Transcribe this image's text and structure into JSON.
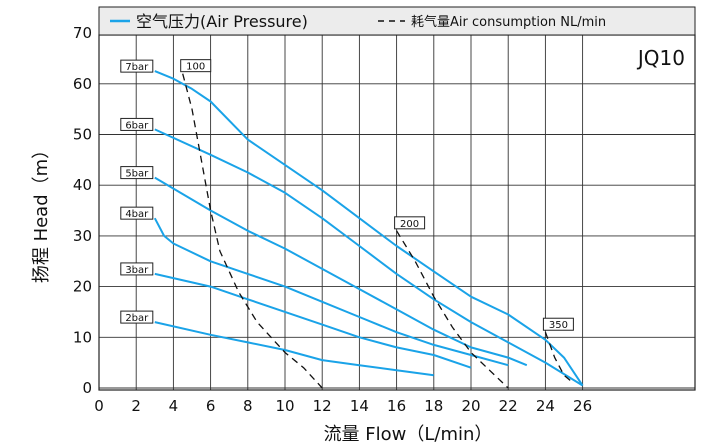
{
  "chart_data": {
    "type": "line",
    "title": "JQ10",
    "xlabel": "流量 Flow（L/min）",
    "ylabel": "扬程 Head（m）",
    "xlim": [
      0,
      27
    ],
    "ylim": [
      0,
      70
    ],
    "xticks": [
      0,
      2,
      4,
      6,
      8,
      10,
      12,
      14,
      16,
      18,
      20,
      22,
      24,
      26
    ],
    "yticks": [
      0,
      10,
      20,
      30,
      40,
      50,
      60,
      70
    ],
    "grid": true,
    "legend": {
      "position": "top",
      "entries": [
        {
          "label": "空气压力(Air Pressure)",
          "style": "solid",
          "color": "#1aa3e8"
        },
        {
          "label": "耗气量Air consumption NL/min",
          "style": "dashed",
          "color": "#111111"
        }
      ]
    },
    "pressure_series": [
      {
        "label": "7bar",
        "points": [
          [
            3,
            62.5
          ],
          [
            4,
            61
          ],
          [
            5,
            59
          ],
          [
            6,
            56.5
          ],
          [
            8,
            49
          ],
          [
            10,
            44
          ],
          [
            12,
            39
          ],
          [
            14,
            33.5
          ],
          [
            16,
            28
          ],
          [
            18,
            23
          ],
          [
            20,
            18
          ],
          [
            22,
            14.5
          ],
          [
            24,
            9.5
          ],
          [
            25,
            6
          ],
          [
            26,
            0.5
          ]
        ]
      },
      {
        "label": "6bar",
        "points": [
          [
            3,
            51
          ],
          [
            6,
            46
          ],
          [
            8,
            42.5
          ],
          [
            10,
            38.5
          ],
          [
            12,
            33.5
          ],
          [
            14,
            28
          ],
          [
            16,
            22.5
          ],
          [
            18,
            17.5
          ],
          [
            20,
            13
          ],
          [
            22,
            9
          ],
          [
            24,
            5
          ],
          [
            26,
            0.5
          ]
        ]
      },
      {
        "label": "5bar",
        "points": [
          [
            3,
            41.5
          ],
          [
            6,
            35
          ],
          [
            8,
            31
          ],
          [
            10,
            27.5
          ],
          [
            12,
            23.5
          ],
          [
            14,
            19.5
          ],
          [
            16,
            15.5
          ],
          [
            18,
            11.5
          ],
          [
            20,
            8
          ],
          [
            22,
            6
          ],
          [
            23,
            4.5
          ]
        ]
      },
      {
        "label": "4bar",
        "points": [
          [
            3,
            33.5
          ],
          [
            3.5,
            30
          ],
          [
            4,
            28.5
          ],
          [
            6,
            25
          ],
          [
            8,
            22.5
          ],
          [
            10,
            20
          ],
          [
            12,
            17
          ],
          [
            14,
            14
          ],
          [
            16,
            11
          ],
          [
            18,
            8.5
          ],
          [
            20,
            6.5
          ],
          [
            22,
            4.5
          ]
        ]
      },
      {
        "label": "3bar",
        "points": [
          [
            3,
            22.5
          ],
          [
            6,
            20
          ],
          [
            8,
            17.5
          ],
          [
            10,
            15
          ],
          [
            12,
            12.5
          ],
          [
            14,
            10
          ],
          [
            16,
            8
          ],
          [
            18,
            6.5
          ],
          [
            20,
            4
          ]
        ]
      },
      {
        "label": "2bar",
        "points": [
          [
            3,
            13
          ],
          [
            6,
            10.5
          ],
          [
            8,
            9
          ],
          [
            10,
            7.5
          ],
          [
            12,
            5.5
          ],
          [
            14,
            4.5
          ],
          [
            16,
            3.5
          ],
          [
            18,
            2.5
          ]
        ]
      }
    ],
    "air_consumption_series": [
      {
        "label": "100",
        "points": [
          [
            4.5,
            62
          ],
          [
            5,
            55
          ],
          [
            5.5,
            45
          ],
          [
            6,
            35
          ],
          [
            6.5,
            27
          ],
          [
            7.5,
            19
          ],
          [
            8.5,
            13
          ],
          [
            10,
            7
          ],
          [
            11,
            4
          ],
          [
            12,
            0
          ]
        ]
      },
      {
        "label": "200",
        "points": [
          [
            16,
            31
          ],
          [
            17,
            25
          ],
          [
            18,
            18
          ],
          [
            19,
            12
          ],
          [
            20,
            7
          ],
          [
            21,
            3.5
          ],
          [
            22,
            0
          ]
        ]
      },
      {
        "label": "350",
        "points": [
          [
            24,
            11
          ],
          [
            24.5,
            6
          ],
          [
            25,
            2.5
          ],
          [
            25.5,
            1
          ]
        ]
      }
    ]
  }
}
